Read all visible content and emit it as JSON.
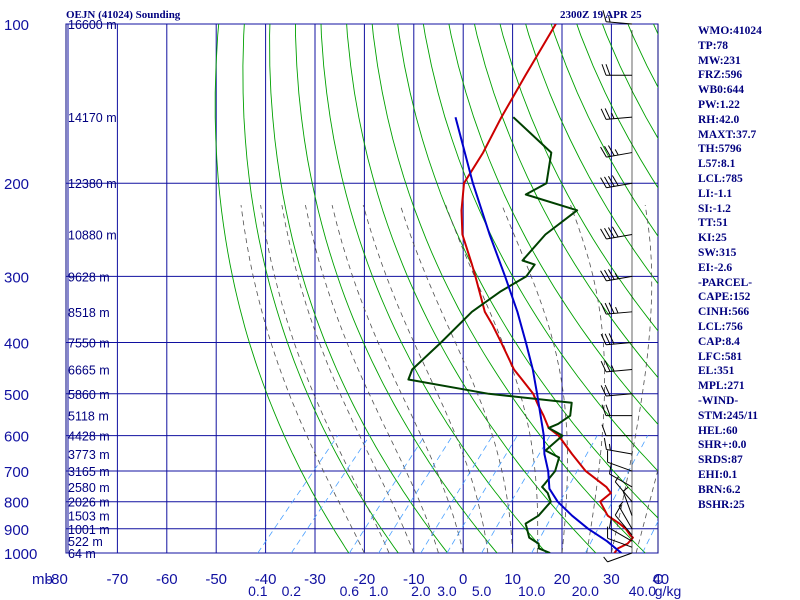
{
  "header": {
    "station": "OEJN (41024) Sounding",
    "time": "2300Z 19 APR 25"
  },
  "indices": [
    "WMO:41024",
    "TP:78",
    "MW:231",
    "FRZ:596",
    "WB0:644",
    "PW:1.22",
    "RH:42.0",
    "MAXT:37.7",
    "TH:5796",
    "L57:8.1",
    "LCL:785",
    "LI:-1.1",
    "SI:-1.2",
    "TT:51",
    "KI:25",
    "SW:315",
    "EI:-2.6",
    "-PARCEL-",
    "CAPE:152",
    "CINH:566",
    "LCL:756",
    "CAP:8.4",
    "LFC:581",
    "EL:351",
    "MPL:271",
    "-WIND-",
    "STM:245/11",
    "HEL:60",
    "SHR+:0.0",
    "SRDS:87",
    "EHI:0.1",
    "BRN:6.2",
    "BSHR:25"
  ],
  "chart_data": {
    "type": "line",
    "title": "OEJN (41024) Sounding",
    "xlabel": "C",
    "ylabel": "mb",
    "x_axis_unit_label": "C",
    "y_axis_unit_label": "mb",
    "mixing_ratio_unit": "g/kg",
    "xlim": [
      -80,
      40
    ],
    "ylim": [
      1000,
      100
    ],
    "y_scale": "log",
    "skew": true,
    "grid": true,
    "colors": {
      "frame": "#00007f",
      "grid": "#1010a0",
      "dry_adiabat": "#00a000",
      "moist_adiabat": "#505050",
      "mixing_ratio": "#4aa0ff",
      "temperature": "#cc0000",
      "dewpoint": "#004000",
      "parcel": "#0000cc",
      "wind": "#000000",
      "text": "#00007f"
    },
    "temperature_ticks": [
      -80,
      -70,
      -60,
      -50,
      -40,
      -30,
      -20,
      -10,
      0,
      10,
      20,
      30,
      40
    ],
    "temperature_tick_labels": [
      "-80",
      "-70",
      "-60",
      "-50",
      "-40",
      "-30",
      "-20",
      "-10",
      "0",
      "10",
      "20",
      "30",
      "40"
    ],
    "pressure_ticks": [
      100,
      200,
      300,
      400,
      500,
      600,
      700,
      800,
      900,
      1000
    ],
    "pressure_tick_labels": [
      "100",
      "200",
      "300",
      "400",
      "500",
      "600",
      "700",
      "800",
      "900",
      "1000"
    ],
    "mixing_ratio_labels": [
      "0.1",
      "0.2",
      "0.6",
      "1.0",
      "2.0",
      "3.0",
      "5.0",
      "10.0",
      "20.0",
      "40.0"
    ],
    "mixing_ratio_values": [
      0.1,
      0.2,
      0.6,
      1.0,
      2.0,
      3.0,
      5.0,
      10.0,
      20.0,
      40.0
    ],
    "heights": [
      {
        "p": 100,
        "label": "16600 m"
      },
      {
        "p": 150,
        "label": "14170 m"
      },
      {
        "p": 200,
        "label": "12380 m"
      },
      {
        "p": 250,
        "label": "10880 m"
      },
      {
        "p": 300,
        "label": "9628 m"
      },
      {
        "p": 350,
        "label": "8518 m"
      },
      {
        "p": 400,
        "label": "7550 m"
      },
      {
        "p": 450,
        "label": "6665 m"
      },
      {
        "p": 500,
        "label": "5860 m"
      },
      {
        "p": 550,
        "label": "5118 m"
      },
      {
        "p": 600,
        "label": "4428 m"
      },
      {
        "p": 650,
        "label": "3773 m"
      },
      {
        "p": 700,
        "label": "3165 m"
      },
      {
        "p": 750,
        "label": "2580 m"
      },
      {
        "p": 800,
        "label": "2026 m"
      },
      {
        "p": 850,
        "label": "1503 m"
      },
      {
        "p": 900,
        "label": "1001 m"
      },
      {
        "p": 950,
        "label": "522 m"
      },
      {
        "p": 1000,
        "label": "64 m"
      }
    ],
    "series": [
      {
        "name": "temperature",
        "p": [
          1000,
          980,
          960,
          935,
          925,
          900,
          880,
          850,
          800,
          770,
          750,
          700,
          650,
          600,
          580,
          550,
          525,
          500,
          470,
          450,
          400,
          370,
          350,
          300,
          285,
          250,
          225,
          200,
          175,
          150,
          125,
          100
        ],
        "t": [
          30.6,
          30.5,
          31.6,
          31.6,
          30.6,
          28.6,
          26.4,
          22.6,
          18.6,
          19.2,
          17.2,
          10.2,
          4.4,
          -1.6,
          -5.0,
          -8.2,
          -11.2,
          -14.2,
          -19.0,
          -22.4,
          -29.8,
          -34.8,
          -38.6,
          -46.8,
          -49.6,
          -56.9,
          -61.4,
          -65.7,
          -67.3,
          -69.9,
          -72.5,
          -75.5
        ]
      },
      {
        "name": "dewpoint",
        "p": [
          1000,
          980,
          960,
          935,
          900,
          880,
          850,
          800,
          770,
          750,
          740,
          700,
          660,
          640,
          600,
          580,
          570,
          550,
          520,
          500,
          470,
          450,
          400,
          350,
          320,
          300,
          285,
          280,
          250,
          225,
          210,
          200,
          175,
          150
        ],
        "t": [
          17.6,
          14.5,
          13.6,
          10.6,
          8.6,
          7.4,
          8.6,
          8.6,
          6.4,
          4.2,
          4.2,
          4.0,
          2.4,
          -1.6,
          -0.8,
          -5.0,
          -3.8,
          -2.8,
          -4.8,
          -23.2,
          -42.0,
          -43.0,
          -42.0,
          -41.2,
          -39.0,
          -36.5,
          -36.9,
          -40.1,
          -40.1,
          -38.0,
          -51.2,
          -49.0,
          -53.5,
          -67.5
        ]
      },
      {
        "name": "parcel",
        "p": [
          1000,
          950,
          900,
          850,
          800,
          756,
          700,
          650,
          600,
          550,
          500,
          450,
          400,
          350,
          300,
          250,
          200,
          150
        ],
        "t": [
          32.0,
          27.0,
          21.0,
          15.4,
          10.0,
          6.0,
          2.6,
          -1.2,
          -4.6,
          -8.8,
          -13.4,
          -18.6,
          -24.8,
          -32.0,
          -40.8,
          -51.4,
          -63.9,
          -79.2
        ]
      }
    ],
    "dry_adiabats_theta_K": [
      250,
      260,
      270,
      280,
      290,
      300,
      310,
      320,
      330,
      340,
      350,
      360,
      370,
      380,
      390,
      400,
      410,
      420,
      430,
      440,
      450,
      460,
      470,
      480,
      490,
      500,
      510,
      520,
      530,
      540
    ],
    "moist_adiabats_T0_C": [
      -20,
      -15,
      -10,
      -5,
      0,
      5,
      10,
      15,
      20,
      25,
      30,
      35
    ],
    "winds": [
      {
        "p": 1000,
        "dir": 250,
        "spd": 5
      },
      {
        "p": 975,
        "dir": 290,
        "spd": 10
      },
      {
        "p": 950,
        "dir": 300,
        "spd": 10
      },
      {
        "p": 925,
        "dir": 320,
        "spd": 10
      },
      {
        "p": 900,
        "dir": 330,
        "spd": 5
      },
      {
        "p": 850,
        "dir": 340,
        "spd": 5
      },
      {
        "p": 800,
        "dir": 320,
        "spd": 5
      },
      {
        "p": 750,
        "dir": 300,
        "spd": 10
      },
      {
        "p": 700,
        "dir": 290,
        "spd": 10
      },
      {
        "p": 650,
        "dir": 280,
        "spd": 15
      },
      {
        "p": 600,
        "dir": 270,
        "spd": 10
      },
      {
        "p": 550,
        "dir": 270,
        "spd": 20
      },
      {
        "p": 500,
        "dir": 265,
        "spd": 20
      },
      {
        "p": 450,
        "dir": 265,
        "spd": 25
      },
      {
        "p": 400,
        "dir": 265,
        "spd": 30
      },
      {
        "p": 350,
        "dir": 265,
        "spd": 35
      },
      {
        "p": 300,
        "dir": 260,
        "spd": 35
      },
      {
        "p": 250,
        "dir": 260,
        "spd": 40
      },
      {
        "p": 200,
        "dir": 260,
        "spd": 40
      },
      {
        "p": 175,
        "dir": 260,
        "spd": 35
      },
      {
        "p": 150,
        "dir": 265,
        "spd": 25
      },
      {
        "p": 125,
        "dir": 270,
        "spd": 20
      },
      {
        "p": 100,
        "dir": 275,
        "spd": 15
      }
    ]
  }
}
